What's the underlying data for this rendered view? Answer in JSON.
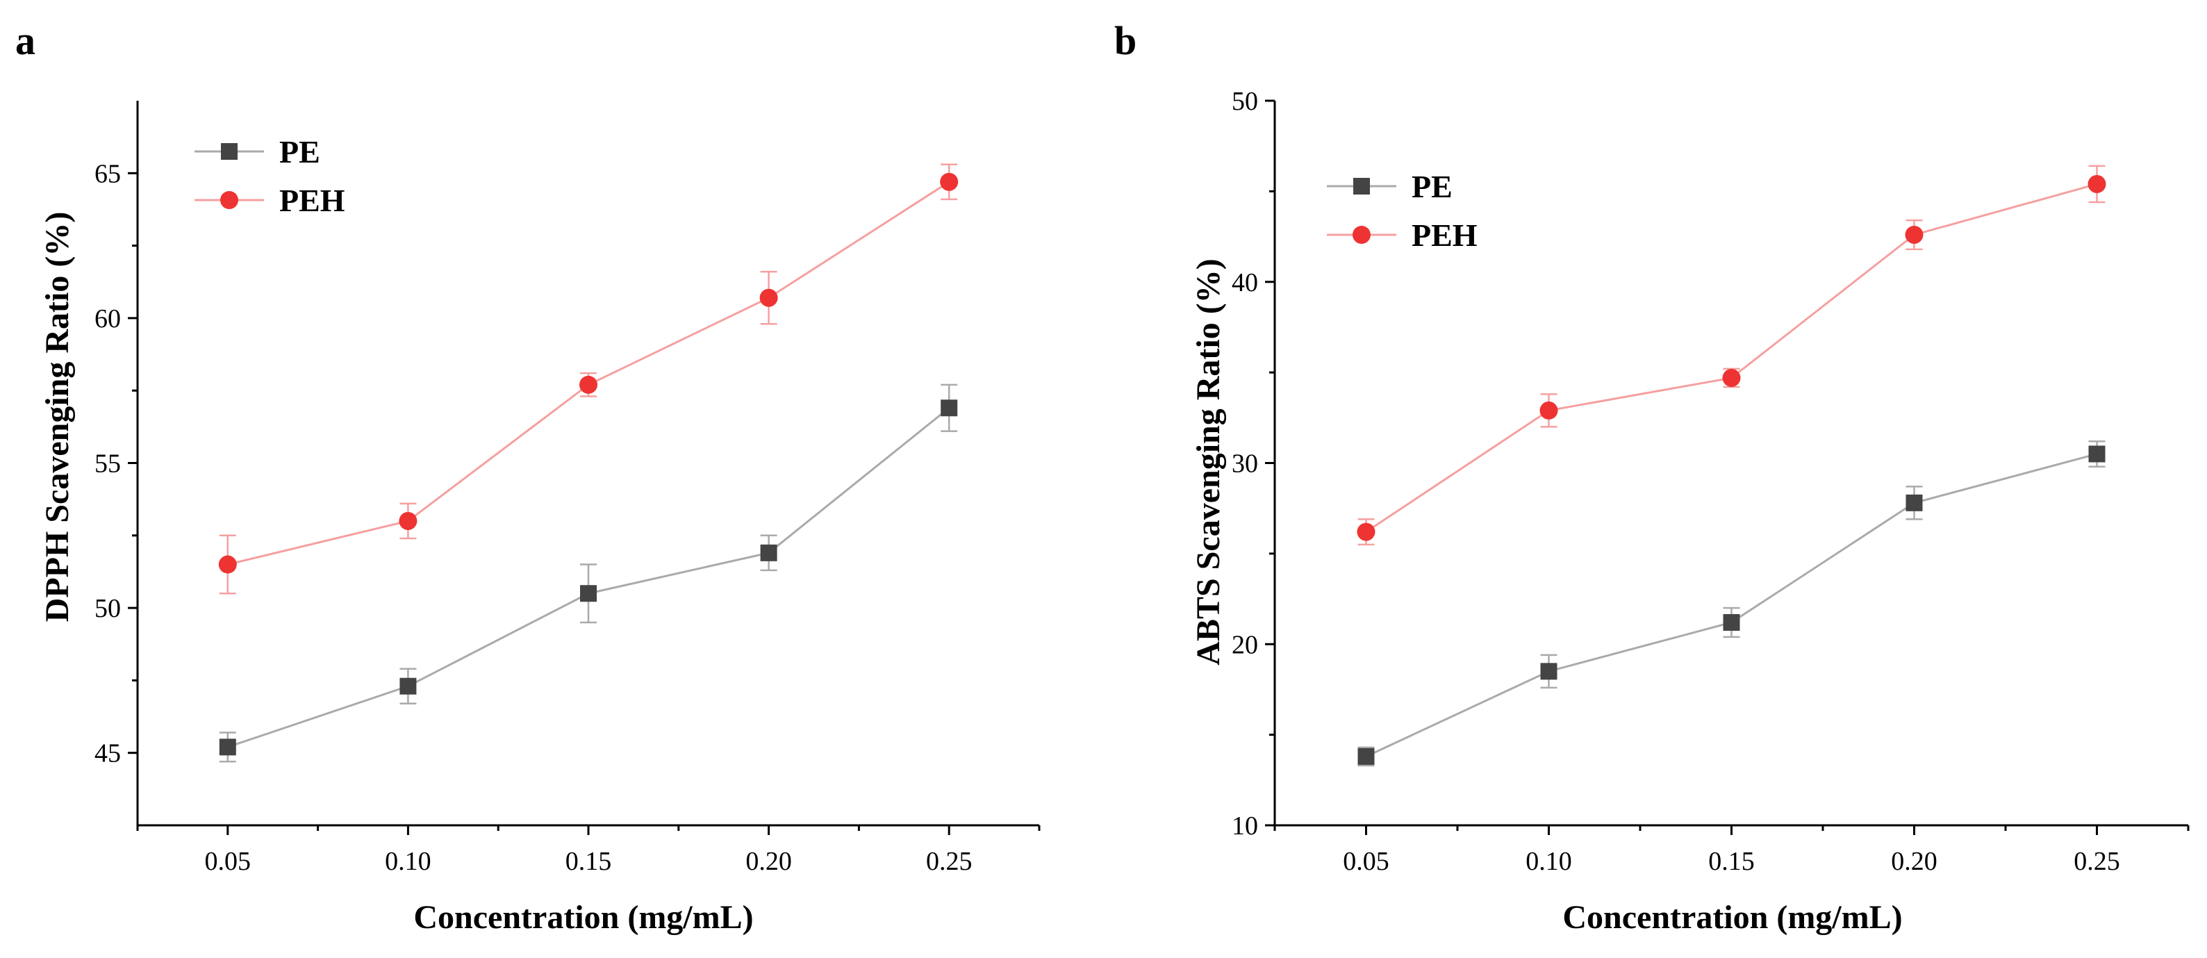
{
  "colors": {
    "pe_marker": "#444444",
    "pe_line": "#aaaaaa",
    "peh_marker": "#ee3333",
    "peh_line": "#f5a0a0",
    "axis": "#000000"
  },
  "chart_data": [
    {
      "panel": "a",
      "type": "line",
      "xlabel": "Concentration (mg/mL)",
      "ylabel": "DPPH Scavenging Ratio (%)",
      "categories": [
        "0.05",
        "0.10",
        "0.15",
        "0.20",
        "0.25"
      ],
      "x": [
        0.05,
        0.1,
        0.15,
        0.2,
        0.25
      ],
      "xlim": [
        0.025,
        0.275
      ],
      "ylim": [
        42.5,
        67.5
      ],
      "yticks": [
        45,
        50,
        55,
        60,
        65
      ],
      "ytick_labels": [
        "45",
        "50",
        "55",
        "60",
        "65"
      ],
      "legend_position": "top-left",
      "series": [
        {
          "name": "PE",
          "marker": "square",
          "values": [
            45.2,
            47.3,
            50.5,
            51.9,
            56.9
          ],
          "errors": [
            0.5,
            0.6,
            1.0,
            0.6,
            0.8
          ]
        },
        {
          "name": "PEH",
          "marker": "circle",
          "values": [
            51.5,
            53.0,
            57.7,
            60.7,
            64.7
          ],
          "errors": [
            1.0,
            0.6,
            0.4,
            0.9,
            0.6
          ]
        }
      ]
    },
    {
      "panel": "b",
      "type": "line",
      "xlabel": "Concentration (mg/mL)",
      "ylabel": "ABTS Scavenging Ratio (%)",
      "categories": [
        "0.05",
        "0.10",
        "0.15",
        "0.20",
        "0.25"
      ],
      "x": [
        0.05,
        0.1,
        0.15,
        0.2,
        0.25
      ],
      "xlim": [
        0.025,
        0.275
      ],
      "ylim": [
        10,
        50
      ],
      "yticks": [
        10,
        20,
        30,
        40,
        50
      ],
      "ytick_labels": [
        "10",
        "20",
        "30",
        "40",
        "50"
      ],
      "legend_position": "top-left",
      "series": [
        {
          "name": "PE",
          "marker": "square",
          "values": [
            13.8,
            18.5,
            21.2,
            27.8,
            30.5
          ],
          "errors": [
            0.5,
            0.9,
            0.8,
            0.9,
            0.7
          ]
        },
        {
          "name": "PEH",
          "marker": "circle",
          "values": [
            26.2,
            32.9,
            34.7,
            42.6,
            45.4
          ],
          "errors": [
            0.7,
            0.9,
            0.5,
            0.8,
            1.0
          ]
        }
      ]
    }
  ]
}
